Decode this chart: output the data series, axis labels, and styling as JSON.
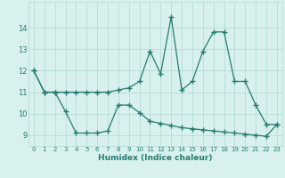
{
  "xlabel": "Humidex (Indice chaleur)",
  "x": [
    0,
    1,
    2,
    3,
    4,
    5,
    6,
    7,
    8,
    9,
    10,
    11,
    12,
    13,
    14,
    15,
    16,
    17,
    18,
    19,
    20,
    21,
    22,
    23
  ],
  "line1": [
    12.0,
    11.0,
    11.0,
    11.0,
    11.0,
    11.0,
    11.0,
    11.0,
    11.1,
    11.2,
    11.5,
    12.9,
    11.85,
    14.5,
    11.1,
    11.5,
    12.9,
    13.8,
    13.8,
    11.5,
    11.5,
    10.4,
    9.5,
    9.5
  ],
  "line2": [
    12.0,
    11.0,
    11.0,
    10.1,
    9.1,
    9.1,
    9.1,
    9.2,
    10.4,
    10.4,
    10.05,
    9.65,
    9.55,
    9.45,
    9.35,
    9.3,
    9.25,
    9.2,
    9.15,
    9.1,
    9.05,
    9.0,
    8.95,
    9.5
  ],
  "line_color": "#267b72",
  "bg_color": "#d8f0ee",
  "grid_color": "#b0d8d4",
  "tick_color": "#267b72",
  "ylim": [
    8.5,
    15.2
  ],
  "yticks": [
    9,
    10,
    11,
    12,
    13,
    14
  ],
  "xticks": [
    0,
    1,
    2,
    3,
    4,
    5,
    6,
    7,
    8,
    9,
    10,
    11,
    12,
    13,
    14,
    15,
    16,
    17,
    18,
    19,
    20,
    21,
    22,
    23
  ],
  "marker": "+",
  "markersize": 4,
  "markeredgewidth": 1.0,
  "linewidth": 0.9
}
